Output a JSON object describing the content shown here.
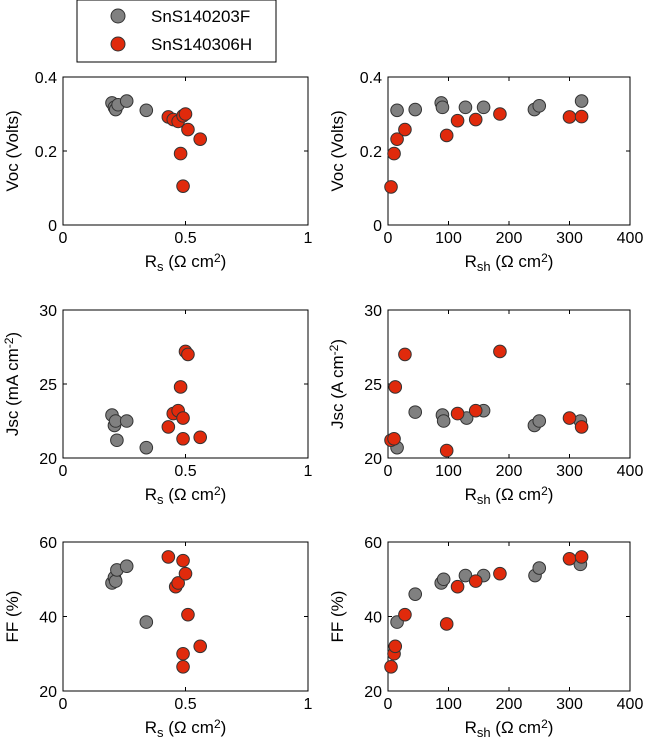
{
  "legend": {
    "items": [
      {
        "label": "SnS140203F",
        "color": "#808080"
      },
      {
        "label": "SnS140306H",
        "color": "#e02a0c"
      }
    ]
  },
  "chart_data": [
    {
      "id": "voc-vs-rs",
      "type": "scatter",
      "xlabel": {
        "main": "R",
        "sub": "s",
        "unit": " (Ω cm",
        "sup": "2",
        "close": ")"
      },
      "ylabel": {
        "main": "Voc (Volts)",
        "sup": "",
        "close": ""
      },
      "xlim": [
        0,
        1
      ],
      "ylim": [
        0,
        0.4
      ],
      "xticks": [
        0,
        0.5,
        1
      ],
      "xtick_labels": [
        "0",
        "0.5",
        "1"
      ],
      "yticks": [
        0,
        0.2,
        0.4
      ],
      "ytick_labels": [
        "0",
        "0.2",
        "0.4"
      ],
      "series": [
        {
          "name": "SnS140203F",
          "color": "#808080",
          "points": [
            [
              0.2,
              0.33
            ],
            [
              0.21,
              0.318
            ],
            [
              0.215,
              0.312
            ],
            [
              0.225,
              0.325
            ],
            [
              0.26,
              0.335
            ],
            [
              0.34,
              0.31
            ]
          ]
        },
        {
          "name": "SnS140306H",
          "color": "#e02a0c",
          "points": [
            [
              0.43,
              0.292
            ],
            [
              0.45,
              0.285
            ],
            [
              0.47,
              0.28
            ],
            [
              0.49,
              0.295
            ],
            [
              0.5,
              0.3
            ],
            [
              0.51,
              0.258
            ],
            [
              0.48,
              0.193
            ],
            [
              0.56,
              0.232
            ],
            [
              0.49,
              0.105
            ]
          ]
        }
      ]
    },
    {
      "id": "voc-vs-rsh",
      "type": "scatter",
      "xlabel": {
        "main": "R",
        "sub": "sh",
        "unit": " (Ω cm",
        "sup": "2",
        "close": ")"
      },
      "ylabel": {
        "main": "Voc (Volts)",
        "sup": "",
        "close": ""
      },
      "xlim": [
        0,
        400
      ],
      "ylim": [
        0,
        0.4
      ],
      "xticks": [
        0,
        100,
        200,
        300,
        400
      ],
      "xtick_labels": [
        "0",
        "100",
        "200",
        "300",
        "400"
      ],
      "yticks": [
        0,
        0.2,
        0.4
      ],
      "ytick_labels": [
        "0",
        "0.2",
        "0.4"
      ],
      "series": [
        {
          "name": "SnS140203F",
          "color": "#808080",
          "points": [
            [
              15,
              0.31
            ],
            [
              45,
              0.312
            ],
            [
              88,
              0.33
            ],
            [
              90,
              0.318
            ],
            [
              128,
              0.318
            ],
            [
              158,
              0.318
            ],
            [
              242,
              0.312
            ],
            [
              250,
              0.322
            ],
            [
              320,
              0.335
            ]
          ]
        },
        {
          "name": "SnS140306H",
          "color": "#e02a0c",
          "points": [
            [
              5,
              0.103
            ],
            [
              10,
              0.193
            ],
            [
              15,
              0.232
            ],
            [
              28,
              0.258
            ],
            [
              97,
              0.242
            ],
            [
              115,
              0.282
            ],
            [
              145,
              0.285
            ],
            [
              185,
              0.3
            ],
            [
              300,
              0.292
            ],
            [
              320,
              0.293
            ]
          ]
        }
      ]
    },
    {
      "id": "jsc-vs-rs",
      "type": "scatter",
      "xlabel": {
        "main": "R",
        "sub": "s",
        "unit": " (Ω cm",
        "sup": "2",
        "close": ")"
      },
      "ylabel": {
        "main": "Jsc (mA cm",
        "sup": "-2",
        "close": ")"
      },
      "xlim": [
        0,
        1
      ],
      "ylim": [
        20,
        30
      ],
      "xticks": [
        0,
        0.5,
        1
      ],
      "xtick_labels": [
        "0",
        "0.5",
        "1"
      ],
      "yticks": [
        20,
        25,
        30
      ],
      "ytick_labels": [
        "20",
        "25",
        "30"
      ],
      "series": [
        {
          "name": "SnS140203F",
          "color": "#808080",
          "points": [
            [
              0.2,
              22.9
            ],
            [
              0.21,
              22.2
            ],
            [
              0.215,
              22.5
            ],
            [
              0.22,
              21.2
            ],
            [
              0.26,
              22.5
            ],
            [
              0.34,
              20.7
            ]
          ]
        },
        {
          "name": "SnS140306H",
          "color": "#e02a0c",
          "points": [
            [
              0.43,
              22.1
            ],
            [
              0.45,
              23.0
            ],
            [
              0.47,
              23.2
            ],
            [
              0.48,
              24.8
            ],
            [
              0.49,
              22.7
            ],
            [
              0.49,
              21.3
            ],
            [
              0.5,
              27.2
            ],
            [
              0.51,
              27.0
            ],
            [
              0.56,
              21.4
            ]
          ]
        }
      ]
    },
    {
      "id": "jsc-vs-rsh",
      "type": "scatter",
      "xlabel": {
        "main": "R",
        "sub": "sh",
        "unit": " (Ω cm",
        "sup": "2",
        "close": ")"
      },
      "ylabel": {
        "main": "Jsc (A cm",
        "sup": "-2",
        "close": ")"
      },
      "xlim": [
        0,
        400
      ],
      "ylim": [
        20,
        30
      ],
      "xticks": [
        0,
        100,
        200,
        300,
        400
      ],
      "xtick_labels": [
        "0",
        "100",
        "200",
        "300",
        "400"
      ],
      "yticks": [
        20,
        25,
        30
      ],
      "ytick_labels": [
        "20",
        "25",
        "30"
      ],
      "series": [
        {
          "name": "SnS140203F",
          "color": "#808080",
          "points": [
            [
              15,
              20.7
            ],
            [
              45,
              23.1
            ],
            [
              90,
              22.9
            ],
            [
              92,
              22.5
            ],
            [
              130,
              22.7
            ],
            [
              158,
              23.2
            ],
            [
              242,
              22.2
            ],
            [
              250,
              22.5
            ],
            [
              318,
              22.5
            ]
          ]
        },
        {
          "name": "SnS140306H",
          "color": "#e02a0c",
          "points": [
            [
              5,
              21.2
            ],
            [
              10,
              21.3
            ],
            [
              12,
              24.8
            ],
            [
              28,
              27.0
            ],
            [
              97,
              20.5
            ],
            [
              115,
              23.0
            ],
            [
              145,
              23.2
            ],
            [
              185,
              27.2
            ],
            [
              300,
              22.7
            ],
            [
              320,
              22.1
            ]
          ]
        }
      ]
    },
    {
      "id": "ff-vs-rs",
      "type": "scatter",
      "xlabel": {
        "main": "R",
        "sub": "s",
        "unit": " (Ω cm",
        "sup": "2",
        "close": ")"
      },
      "ylabel": {
        "main": "FF (%)",
        "sup": "",
        "close": ""
      },
      "xlim": [
        0,
        1
      ],
      "ylim": [
        20,
        60
      ],
      "xticks": [
        0,
        0.5,
        1
      ],
      "xtick_labels": [
        "0",
        "0.5",
        "1"
      ],
      "yticks": [
        20,
        40,
        60
      ],
      "ytick_labels": [
        "20",
        "40",
        "60"
      ],
      "series": [
        {
          "name": "SnS140203F",
          "color": "#808080",
          "points": [
            [
              0.2,
              49.0
            ],
            [
              0.21,
              50.5
            ],
            [
              0.215,
              49.5
            ],
            [
              0.22,
              52.5
            ],
            [
              0.26,
              53.5
            ],
            [
              0.34,
              38.5
            ]
          ]
        },
        {
          "name": "SnS140306H",
          "color": "#e02a0c",
          "points": [
            [
              0.43,
              56.0
            ],
            [
              0.46,
              48.0
            ],
            [
              0.47,
              49.0
            ],
            [
              0.49,
              55.0
            ],
            [
              0.5,
              51.5
            ],
            [
              0.51,
              40.5
            ],
            [
              0.49,
              30.0
            ],
            [
              0.49,
              26.5
            ],
            [
              0.56,
              32.0
            ]
          ]
        }
      ]
    },
    {
      "id": "ff-vs-rsh",
      "type": "scatter",
      "xlabel": {
        "main": "R",
        "sub": "sh",
        "unit": " (Ω cm",
        "sup": "2",
        "close": ")"
      },
      "ylabel": {
        "main": "FF (%)",
        "sup": "",
        "close": ""
      },
      "xlim": [
        0,
        400
      ],
      "ylim": [
        20,
        60
      ],
      "xticks": [
        0,
        100,
        200,
        300,
        400
      ],
      "xtick_labels": [
        "0",
        "100",
        "200",
        "300",
        "400"
      ],
      "yticks": [
        20,
        40,
        60
      ],
      "ytick_labels": [
        "20",
        "40",
        "60"
      ],
      "series": [
        {
          "name": "SnS140203F",
          "color": "#808080",
          "points": [
            [
              15,
              38.5
            ],
            [
              45,
              46.0
            ],
            [
              88,
              49.0
            ],
            [
              92,
              50.0
            ],
            [
              128,
              51.0
            ],
            [
              158,
              51.0
            ],
            [
              243,
              51.0
            ],
            [
              250,
              53.0
            ],
            [
              318,
              54.0
            ]
          ]
        },
        {
          "name": "SnS140306H",
          "color": "#e02a0c",
          "points": [
            [
              5,
              26.5
            ],
            [
              10,
              30.0
            ],
            [
              12,
              32.0
            ],
            [
              28,
              40.5
            ],
            [
              97,
              38.0
            ],
            [
              115,
              48.0
            ],
            [
              145,
              49.5
            ],
            [
              185,
              51.5
            ],
            [
              300,
              55.5
            ],
            [
              320,
              56.0
            ]
          ]
        }
      ]
    }
  ]
}
